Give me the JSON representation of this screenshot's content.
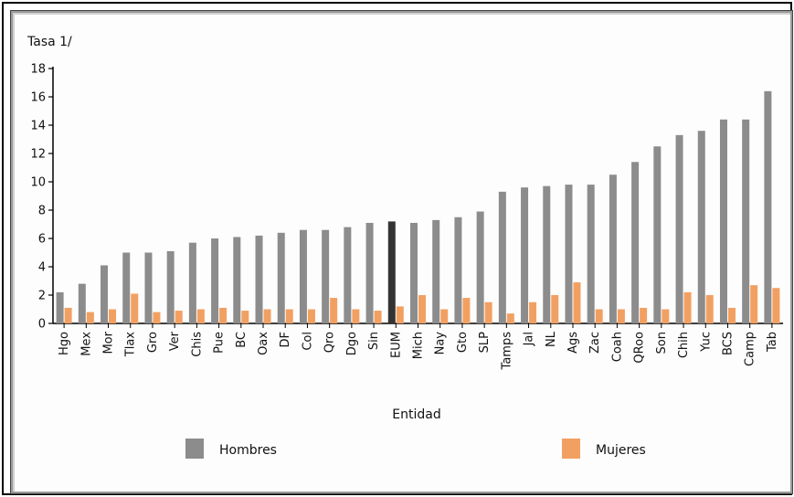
{
  "chart_data": {
    "type": "bar",
    "ylabel": "Tasa 1/",
    "xlabel": "Entidad",
    "ylim": [
      0,
      18
    ],
    "yticks": [
      0,
      2,
      4,
      6,
      8,
      10,
      12,
      14,
      16,
      18
    ],
    "grid": false,
    "legend_position": "bottom",
    "categories": [
      "Hgo",
      "Mex",
      "Mor",
      "Tlax",
      "Gro",
      "Ver",
      "Chis",
      "Pue",
      "BC",
      "Oax",
      "DF",
      "Col",
      "Qro",
      "Dgo",
      "Sin",
      "EUM",
      "Mich",
      "Nay",
      "Gto",
      "SLP",
      "Tamps",
      "Jal",
      "NL",
      "Ags",
      "Zac",
      "Coah",
      "QRoo",
      "Son",
      "Chih",
      "Yuc",
      "BCS",
      "Camp",
      "Tab"
    ],
    "highlight_category": "EUM",
    "series": [
      {
        "name": "Hombres",
        "color": "#8c8c8c",
        "highlight_color": "#333333",
        "values": [
          2.2,
          2.8,
          4.1,
          5.0,
          5.0,
          5.1,
          5.7,
          6.0,
          6.1,
          6.2,
          6.4,
          6.6,
          6.6,
          6.8,
          7.1,
          7.2,
          7.1,
          7.3,
          7.5,
          7.9,
          9.3,
          9.6,
          9.7,
          9.8,
          9.8,
          10.5,
          11.4,
          12.5,
          13.3,
          13.6,
          14.4,
          14.4,
          16.4
        ]
      },
      {
        "name": "Mujeres",
        "color": "#f2a062",
        "values": [
          1.1,
          0.8,
          1.0,
          2.1,
          0.8,
          0.9,
          1.0,
          1.1,
          0.9,
          1.0,
          1.0,
          1.0,
          1.8,
          1.0,
          0.9,
          1.2,
          2.0,
          1.0,
          1.8,
          1.5,
          0.7,
          1.5,
          2.0,
          2.9,
          1.0,
          1.0,
          1.1,
          1.0,
          2.2,
          2.0,
          1.1,
          2.7,
          2.5
        ]
      }
    ]
  }
}
